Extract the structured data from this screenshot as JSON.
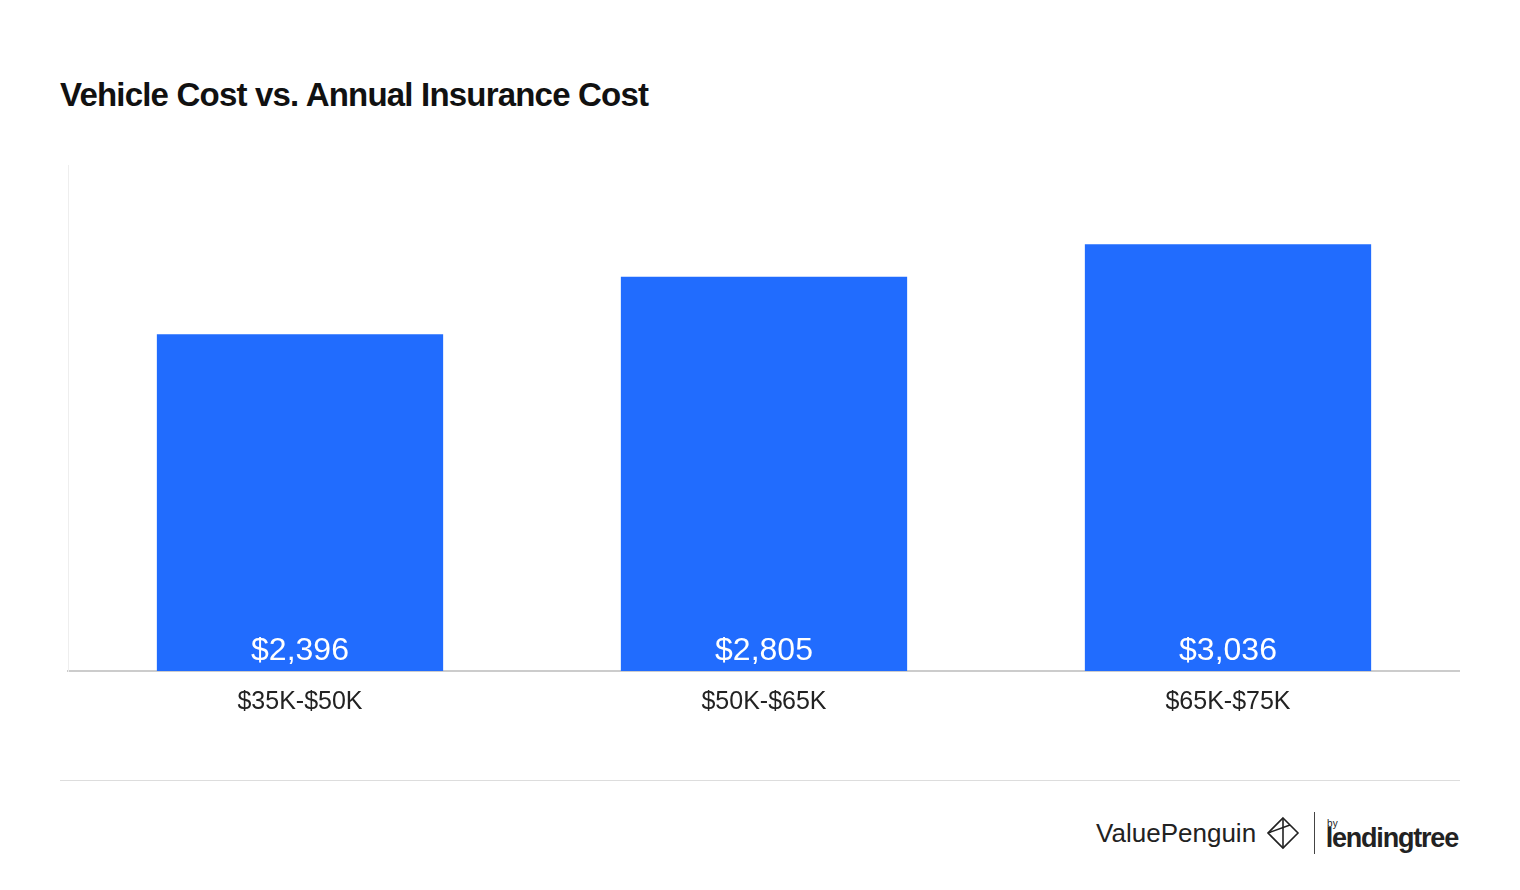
{
  "chart_data": {
    "type": "bar",
    "title": "Vehicle Cost vs. Annual Insurance Cost",
    "categories": [
      "$35K-$50K",
      "$50K-$65K",
      "$65K-$75K"
    ],
    "values": [
      2396,
      2805,
      3036
    ],
    "value_labels": [
      "$2,396",
      "$2,805",
      "$3,036"
    ],
    "color": "#216cfe",
    "ylim": [
      0,
      3600
    ],
    "grid": false,
    "data_labels": true,
    "tick_labels": "x",
    "annotations": [
      "ValuePenguin",
      "by",
      "lendingtree"
    ]
  }
}
